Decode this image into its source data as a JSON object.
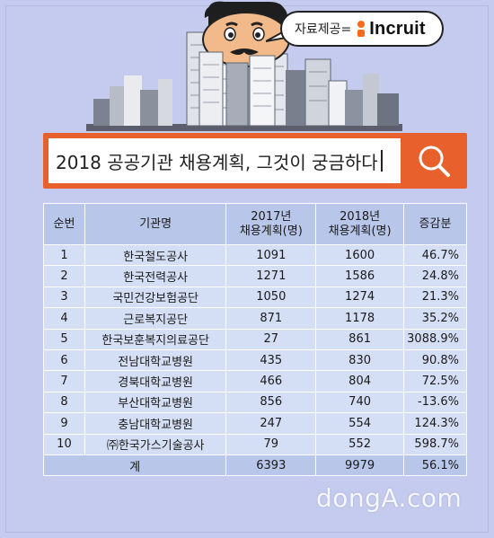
{
  "header": {
    "credit_label": "자료제공=",
    "logo_text": "Incruit",
    "accent_color": "#e8612c",
    "icons": [
      "skyline-illustration",
      "character-illustration",
      "incruit-logo",
      "search-icon"
    ]
  },
  "search": {
    "title": "2018 공공기관 채용계획, 그것이 궁금하다"
  },
  "table": {
    "columns": [
      "순번",
      "기관명",
      "2017년\n채용계획(명)",
      "2018년\n채용계획(명)",
      "증감분"
    ],
    "rows": [
      [
        "1",
        "한국철도공사",
        "1091",
        "1600",
        "46.7%"
      ],
      [
        "2",
        "한국전력공사",
        "1271",
        "1586",
        "24.8%"
      ],
      [
        "3",
        "국민건강보험공단",
        "1050",
        "1274",
        "21.3%"
      ],
      [
        "4",
        "근로복지공단",
        "871",
        "1178",
        "35.2%"
      ],
      [
        "5",
        "한국보훈복지의료공단",
        "27",
        "861",
        "3088.9%"
      ],
      [
        "6",
        "전남대학교병원",
        "435",
        "830",
        "90.8%"
      ],
      [
        "7",
        "경북대학교병원",
        "466",
        "804",
        "72.5%"
      ],
      [
        "8",
        "부산대학교병원",
        "856",
        "740",
        "-13.6%"
      ],
      [
        "9",
        "충남대학교병원",
        "247",
        "554",
        "124.3%"
      ],
      [
        "10",
        "㈜한국가스기술공사",
        "79",
        "552",
        "598.7%"
      ]
    ],
    "total": [
      "계",
      "6393",
      "9979",
      "56.1%"
    ]
  },
  "watermark": "dongA.com"
}
